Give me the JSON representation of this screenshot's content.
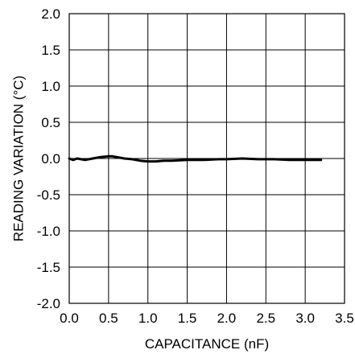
{
  "chart_data": {
    "type": "line",
    "title": "",
    "xlabel": "CAPACITANCE (nF)",
    "ylabel": "READING VARIATION (°C)",
    "xlim": [
      0,
      3.5
    ],
    "ylim": [
      -2.0,
      2.0
    ],
    "grid": true,
    "xticks": [
      "0.0",
      "0.5",
      "1.0",
      "1.5",
      "2.0",
      "2.5",
      "3.0",
      "3.5"
    ],
    "yticks": [
      "2.0",
      "1.5",
      "1.0",
      "0.5",
      "0.0",
      "-0.5",
      "-1.0",
      "-1.5",
      "-2.0"
    ],
    "series": [
      {
        "x": [
          0.0,
          0.05,
          0.1,
          0.2,
          0.3,
          0.4,
          0.5,
          0.55,
          0.6,
          0.7,
          0.8,
          0.9,
          1.0,
          1.1,
          1.2,
          1.3,
          1.5,
          1.7,
          1.9,
          2.0,
          2.2,
          2.4,
          2.6,
          2.8,
          3.0,
          3.2
        ],
        "y": [
          0.0,
          -0.02,
          0.0,
          -0.02,
          0.0,
          0.02,
          0.03,
          0.03,
          0.02,
          0.0,
          -0.01,
          -0.03,
          -0.04,
          -0.04,
          -0.03,
          -0.03,
          -0.02,
          -0.02,
          -0.01,
          -0.01,
          0.0,
          -0.01,
          -0.01,
          -0.02,
          -0.02,
          -0.02
        ]
      }
    ],
    "colors": {
      "line": "#000000",
      "grid": "#000000"
    }
  }
}
